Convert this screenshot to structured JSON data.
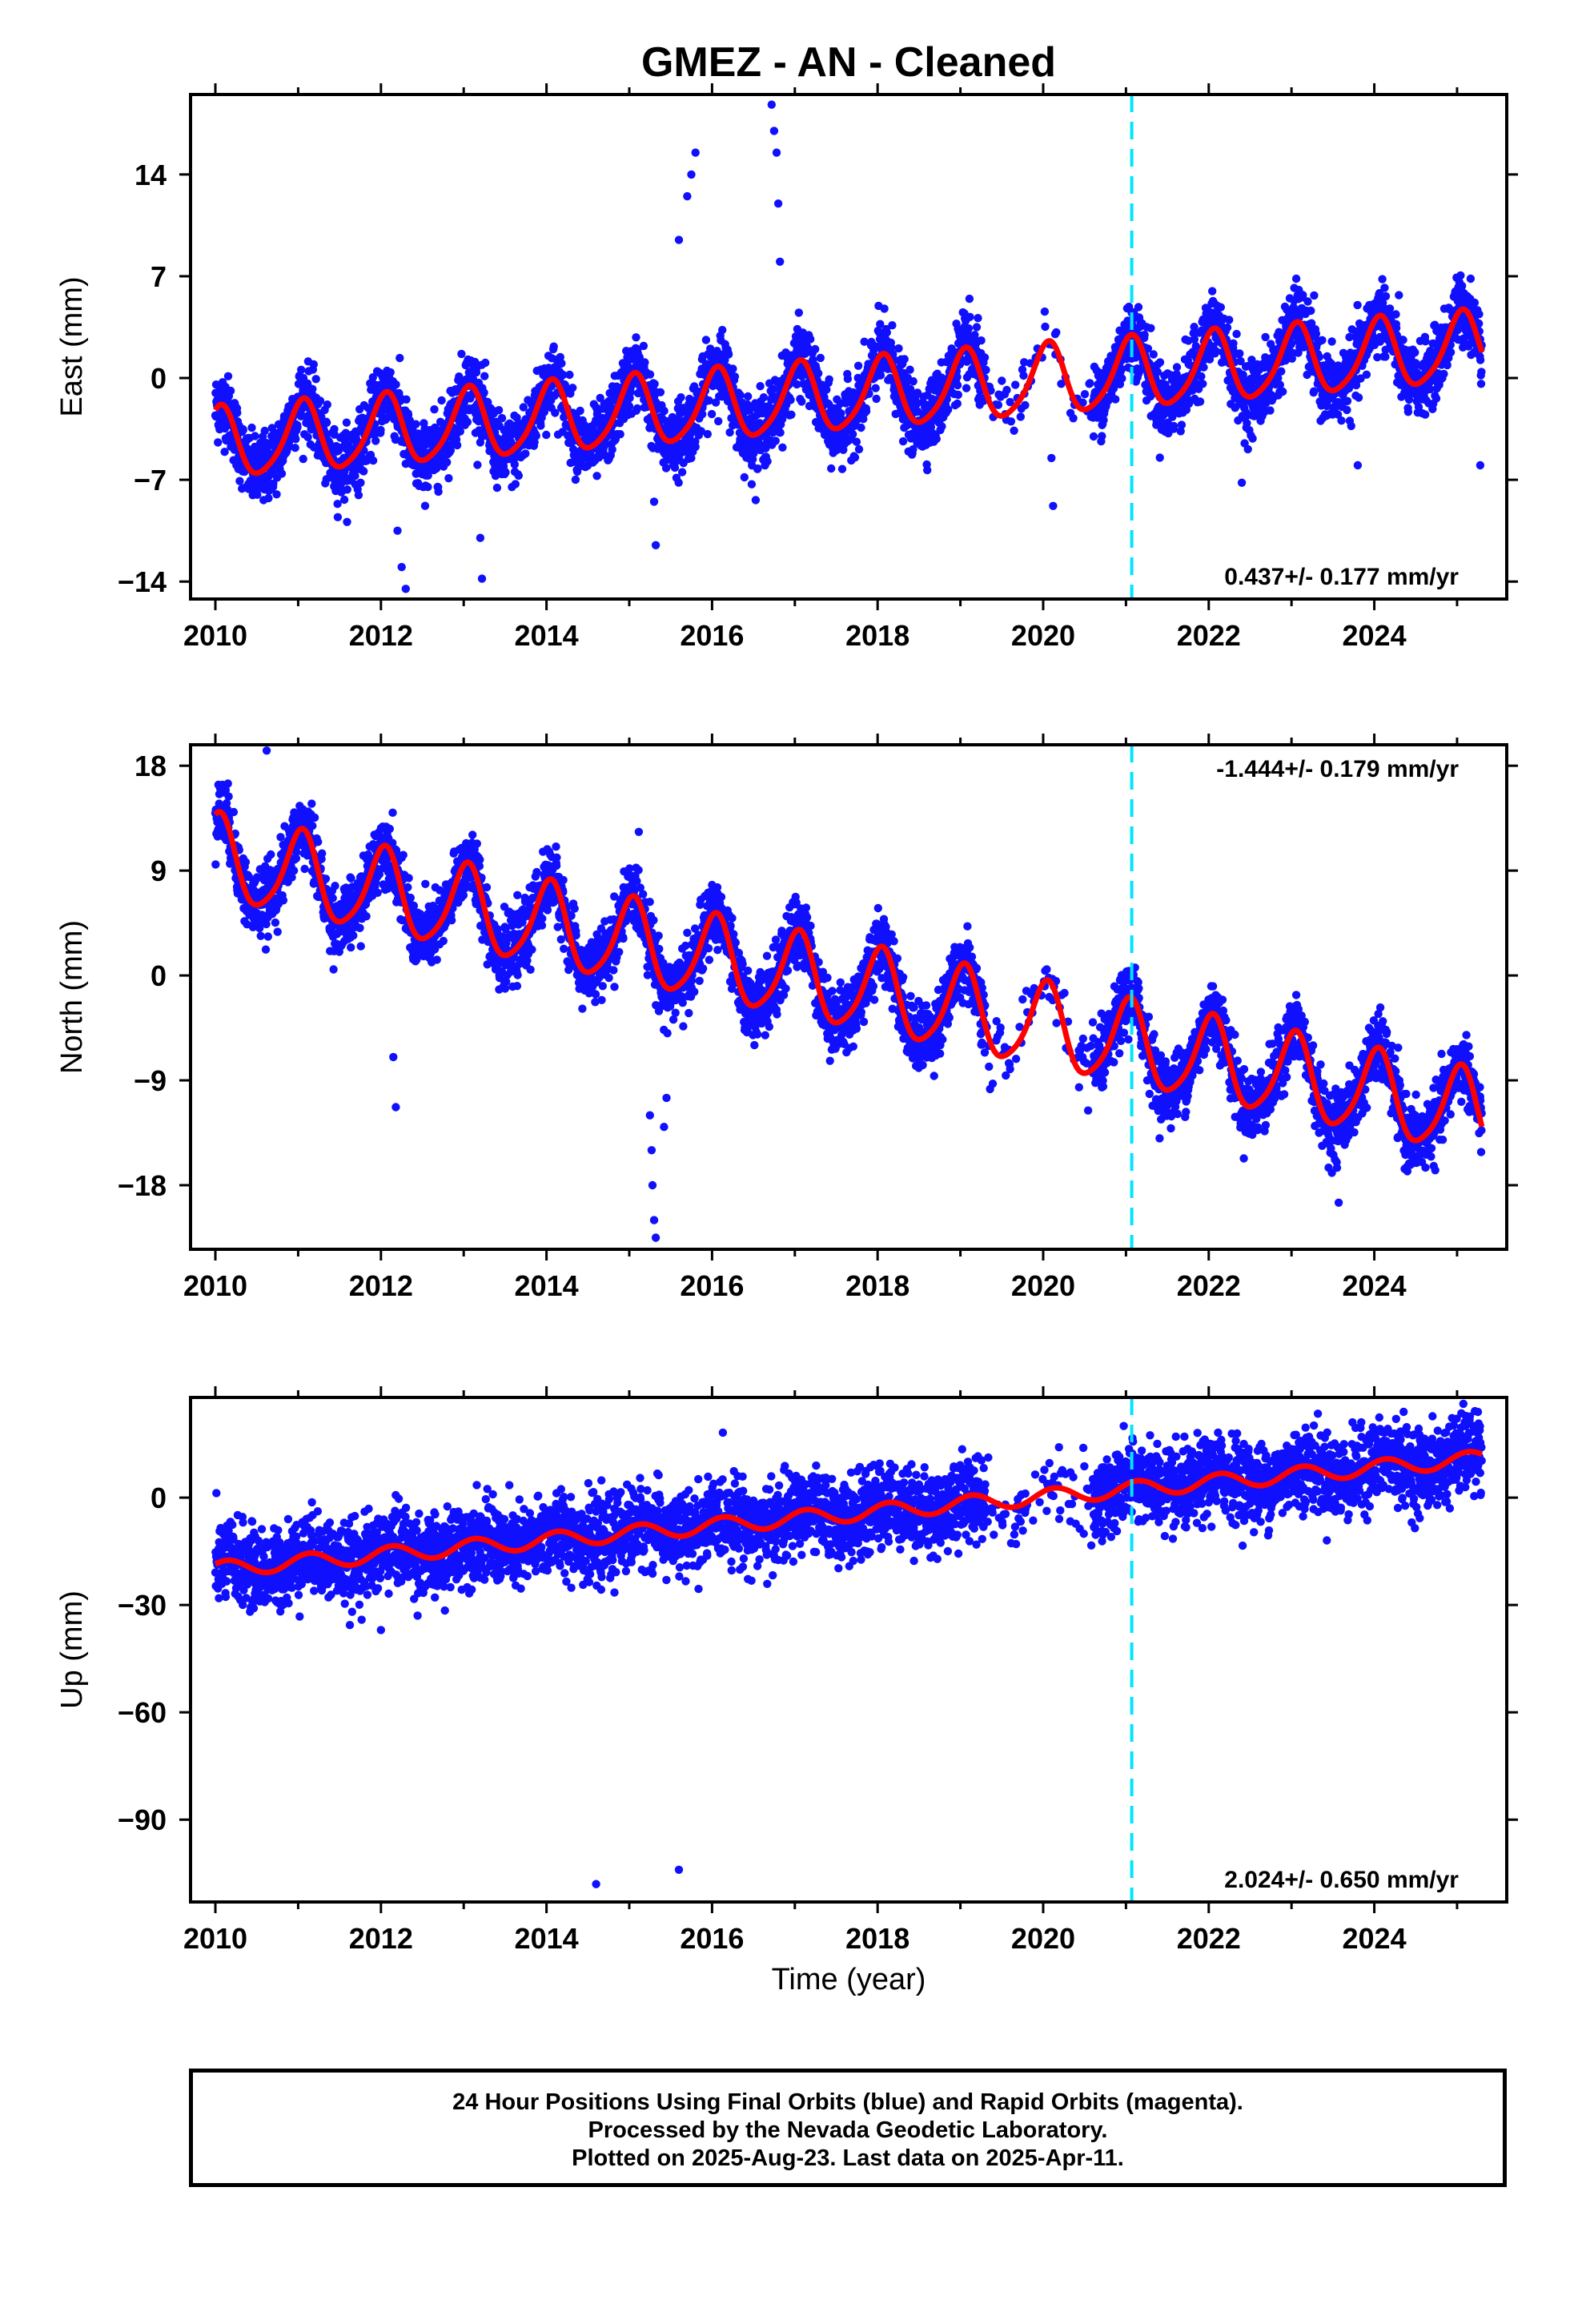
{
  "title": "GMEZ  - AN - Cleaned",
  "xlabel": "Time (year)",
  "footer": {
    "line1": "24 Hour Positions Using Final Orbits (blue) and Rapid Orbits (magenta).",
    "line2": "Processed by the Nevada Geodetic Laboratory.",
    "line3": "Plotted on 2025-Aug-23. Last data on 2025-Apr-11."
  },
  "colors": {
    "data": "#1010ff",
    "fit": "#ff0000",
    "cutoff_line": "#00e5ff"
  },
  "chart_data": [
    {
      "type": "scatter",
      "panel": "east",
      "ylabel": "East (mm)",
      "xlim": [
        2009.7,
        2025.6
      ],
      "ylim": [
        -15.2,
        19.5
      ],
      "xticks": [
        2010,
        2012,
        2014,
        2016,
        2018,
        2020,
        2022,
        2024
      ],
      "yticks": [
        -14,
        -7,
        0,
        7,
        14
      ],
      "rate_text": "0.437+/- 0.177 mm/yr",
      "rate_position": "bottom-right",
      "cutoff_year": 2021.07,
      "fit_model": {
        "start": 2010.0,
        "end": 2025.3,
        "intercept": -4.6,
        "slope": 0.437,
        "annual_amp": 2.4,
        "annual_phase": 1.25,
        "semiannual_amp": 0.4,
        "semiannual_phase": 0.3
      },
      "segments": [
        {
          "start": 2010.0,
          "end": 2012.5,
          "offset": 0.0
        },
        {
          "start": 2012.5,
          "end": 2013.9,
          "offset": 0.0
        },
        {
          "start": 2013.9,
          "end": 2015.2,
          "offset": 0.0
        },
        {
          "start": 2015.2,
          "end": 2016.9,
          "offset": 0.0
        },
        {
          "start": 2016.9,
          "end": 2025.3,
          "offset": 0.0
        }
      ],
      "noise": 1.2,
      "outliers": [
        {
          "x": 2012.2,
          "y": -10.5
        },
        {
          "x": 2012.25,
          "y": -13.0
        },
        {
          "x": 2012.3,
          "y": -14.5
        },
        {
          "x": 2013.2,
          "y": -11.0
        },
        {
          "x": 2013.22,
          "y": -13.8
        },
        {
          "x": 2015.3,
          "y": -8.5
        },
        {
          "x": 2015.32,
          "y": -11.5
        },
        {
          "x": 2015.6,
          "y": 9.5
        },
        {
          "x": 2015.7,
          "y": 12.5
        },
        {
          "x": 2015.75,
          "y": 14.0
        },
        {
          "x": 2015.8,
          "y": 15.5
        },
        {
          "x": 2016.72,
          "y": 18.8
        },
        {
          "x": 2016.75,
          "y": 17.0
        },
        {
          "x": 2016.78,
          "y": 15.5
        },
        {
          "x": 2016.8,
          "y": 12.0
        },
        {
          "x": 2016.82,
          "y": 8.0
        },
        {
          "x": 2020.1,
          "y": -5.5
        },
        {
          "x": 2020.12,
          "y": -8.8
        },
        {
          "x": 2022.4,
          "y": -7.2
        },
        {
          "x": 2023.8,
          "y": -6.0
        },
        {
          "x": 2025.28,
          "y": -6.0
        }
      ]
    },
    {
      "type": "scatter",
      "panel": "north",
      "ylabel": "North (mm)",
      "xlim": [
        2009.7,
        2025.6
      ],
      "ylim": [
        -23.5,
        19.8
      ],
      "xticks": [
        2010,
        2012,
        2014,
        2016,
        2018,
        2020,
        2022,
        2024
      ],
      "yticks": [
        -18,
        -9,
        0,
        9,
        18
      ],
      "rate_text": "-1.444+/- 0.179 mm/yr",
      "rate_position": "top-right",
      "cutoff_year": 2021.07,
      "fit_model": {
        "start": 2010.0,
        "end": 2025.3,
        "intercept": 10.0,
        "slope": -1.444,
        "annual_amp": 3.6,
        "annual_phase": 1.35,
        "semiannual_amp": 0.6,
        "semiannual_phase": 0.5
      },
      "segments": [
        {
          "start": 2010.0,
          "end": 2025.3,
          "offset": 0.0
        }
      ],
      "noise": 1.4,
      "outliers": [
        {
          "x": 2010.62,
          "y": 19.3
        },
        {
          "x": 2012.15,
          "y": -7.0
        },
        {
          "x": 2012.18,
          "y": -11.3
        },
        {
          "x": 2015.25,
          "y": -12.0
        },
        {
          "x": 2015.27,
          "y": -15.0
        },
        {
          "x": 2015.28,
          "y": -18.0
        },
        {
          "x": 2015.3,
          "y": -21.0
        },
        {
          "x": 2015.32,
          "y": -22.5
        },
        {
          "x": 2015.42,
          "y": -13.0
        },
        {
          "x": 2015.45,
          "y": -10.5
        },
        {
          "x": 2023.55,
          "y": -16.5
        },
        {
          "x": 2023.57,
          "y": -19.5
        },
        {
          "x": 2024.4,
          "y": -16.8
        }
      ]
    },
    {
      "type": "scatter",
      "panel": "up",
      "ylabel": "Up (mm)",
      "xlim": [
        2009.7,
        2025.6
      ],
      "ylim": [
        -113,
        28
      ],
      "xticks": [
        2010,
        2012,
        2014,
        2016,
        2018,
        2020,
        2022,
        2024
      ],
      "yticks": [
        -90,
        -60,
        -30,
        0
      ],
      "rate_text": "2.024+/- 0.650 mm/yr",
      "rate_position": "bottom-right",
      "cutoff_year": 2021.07,
      "fit_model": {
        "start": 2010.0,
        "end": 2025.3,
        "intercept": -20.0,
        "slope": 2.024,
        "annual_amp": 2.2,
        "annual_phase": 0.7,
        "semiannual_amp": 0.0,
        "semiannual_phase": 0.0
      },
      "segments": [
        {
          "start": 2010.0,
          "end": 2025.3,
          "offset": 0.0
        }
      ],
      "noise": 5.5,
      "outliers": [
        {
          "x": 2014.6,
          "y": -108.0
        },
        {
          "x": 2015.6,
          "y": -104.0
        },
        {
          "x": 2012.0,
          "y": -37.0
        }
      ]
    }
  ]
}
